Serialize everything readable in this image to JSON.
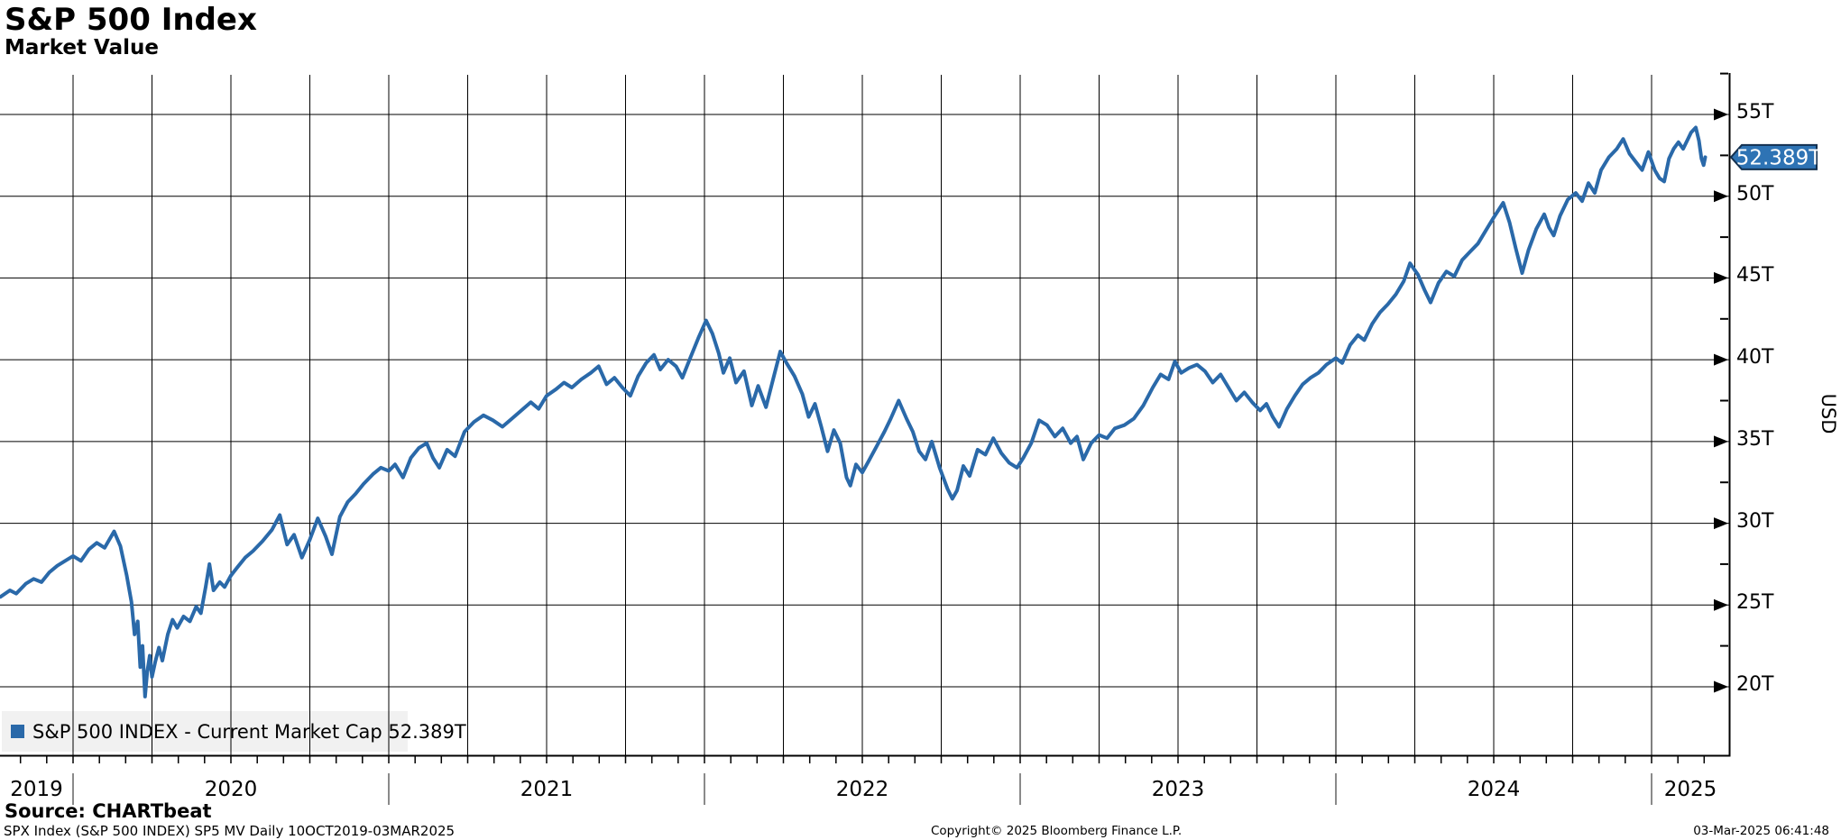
{
  "header": {
    "title": "S&P 500 Index",
    "subtitle": "Market Value"
  },
  "legend": {
    "swatch_color": "#2A69A9",
    "label": "S&P 500 INDEX - Current Market Cap 52.389T"
  },
  "y_axis": {
    "unit": "USD",
    "badge": {
      "label": "52.389T",
      "fill": "#2E73B4",
      "border": "#13304F"
    }
  },
  "footer": {
    "source": "Source: CHARTbeat",
    "meta": "SPX Index (S&P 500 INDEX) SP5 MV  Daily 10OCT2019-03MAR2025",
    "copyright": "Copyright© 2025 Bloomberg Finance L.P.",
    "timestamp": "03-Mar-2025 06:41:48"
  },
  "chart_data": {
    "type": "line",
    "title": "S&P 500 Index Market Value",
    "xlabel": "",
    "ylabel": "USD",
    "y_unit": "trillions of USD",
    "x_range_note": "10OCT2019-03MAR2025",
    "xlim": [
      2019.769,
      2025.249
    ],
    "ylim": [
      15.8,
      57.4
    ],
    "grid": "horizontal every 5T, vertical quarterly, black",
    "legend_position": "bottom-left",
    "y_ticks": [
      {
        "value": 55,
        "label": "55T"
      },
      {
        "value": 50,
        "label": "50T"
      },
      {
        "value": 45,
        "label": "45T"
      },
      {
        "value": 40,
        "label": "40T"
      },
      {
        "value": 35,
        "label": "35T"
      },
      {
        "value": 30,
        "label": "30T"
      },
      {
        "value": 25,
        "label": "25T"
      },
      {
        "value": 20,
        "label": "20T"
      }
    ],
    "y_minor_tick_values": [
      57.5,
      52.5,
      47.5,
      42.5,
      37.5,
      32.5,
      27.5,
      22.5
    ],
    "x_year_labels": [
      "2019",
      "2020",
      "2021",
      "2022",
      "2023",
      "2024",
      "2025"
    ],
    "x_year_boundaries": [
      2020,
      2021,
      2022,
      2023,
      2024,
      2025
    ],
    "series": [
      {
        "name": "S&P 500 INDEX",
        "color": "#2A69A9",
        "last_value": 52.389,
        "last_value_label": "52.389T",
        "points": [
          [
            2019.77,
            25.5
          ],
          [
            2019.8,
            25.9
          ],
          [
            2019.82,
            25.7
          ],
          [
            2019.85,
            26.3
          ],
          [
            2019.875,
            26.6
          ],
          [
            2019.9,
            26.4
          ],
          [
            2019.925,
            27.0
          ],
          [
            2019.95,
            27.4
          ],
          [
            2019.975,
            27.7
          ],
          [
            2020.0,
            28.0
          ],
          [
            2020.025,
            27.7
          ],
          [
            2020.05,
            28.4
          ],
          [
            2020.075,
            28.8
          ],
          [
            2020.1,
            28.5
          ],
          [
            2020.13,
            29.5
          ],
          [
            2020.15,
            28.6
          ],
          [
            2020.17,
            26.8
          ],
          [
            2020.185,
            25.2
          ],
          [
            2020.195,
            23.2
          ],
          [
            2020.205,
            24.0
          ],
          [
            2020.213,
            21.2
          ],
          [
            2020.22,
            22.5
          ],
          [
            2020.228,
            19.4
          ],
          [
            2020.235,
            20.9
          ],
          [
            2020.243,
            21.9
          ],
          [
            2020.25,
            20.6
          ],
          [
            2020.26,
            21.5
          ],
          [
            2020.272,
            22.4
          ],
          [
            2020.283,
            21.6
          ],
          [
            2020.3,
            23.2
          ],
          [
            2020.315,
            24.1
          ],
          [
            2020.33,
            23.6
          ],
          [
            2020.35,
            24.3
          ],
          [
            2020.37,
            24.0
          ],
          [
            2020.39,
            24.9
          ],
          [
            2020.405,
            24.5
          ],
          [
            2020.42,
            26.1
          ],
          [
            2020.432,
            27.5
          ],
          [
            2020.445,
            25.9
          ],
          [
            2020.465,
            26.4
          ],
          [
            2020.48,
            26.1
          ],
          [
            2020.5,
            26.8
          ],
          [
            2020.52,
            27.3
          ],
          [
            2020.545,
            27.9
          ],
          [
            2020.57,
            28.3
          ],
          [
            2020.6,
            28.9
          ],
          [
            2020.63,
            29.6
          ],
          [
            2020.655,
            30.5
          ],
          [
            2020.678,
            28.7
          ],
          [
            2020.7,
            29.3
          ],
          [
            2020.725,
            27.9
          ],
          [
            2020.75,
            29.0
          ],
          [
            2020.775,
            30.3
          ],
          [
            2020.8,
            29.2
          ],
          [
            2020.82,
            28.1
          ],
          [
            2020.845,
            30.4
          ],
          [
            2020.87,
            31.3
          ],
          [
            2020.895,
            31.8
          ],
          [
            2020.92,
            32.4
          ],
          [
            2020.95,
            33.0
          ],
          [
            2020.975,
            33.4
          ],
          [
            2021.0,
            33.2
          ],
          [
            2021.02,
            33.6
          ],
          [
            2021.045,
            32.8
          ],
          [
            2021.07,
            34.0
          ],
          [
            2021.095,
            34.6
          ],
          [
            2021.12,
            34.9
          ],
          [
            2021.14,
            34.0
          ],
          [
            2021.16,
            33.4
          ],
          [
            2021.185,
            34.5
          ],
          [
            2021.21,
            34.1
          ],
          [
            2021.24,
            35.6
          ],
          [
            2021.27,
            36.2
          ],
          [
            2021.3,
            36.6
          ],
          [
            2021.33,
            36.3
          ],
          [
            2021.36,
            35.9
          ],
          [
            2021.39,
            36.4
          ],
          [
            2021.42,
            36.9
          ],
          [
            2021.45,
            37.4
          ],
          [
            2021.475,
            37.0
          ],
          [
            2021.5,
            37.8
          ],
          [
            2021.53,
            38.2
          ],
          [
            2021.555,
            38.6
          ],
          [
            2021.58,
            38.3
          ],
          [
            2021.61,
            38.8
          ],
          [
            2021.64,
            39.2
          ],
          [
            2021.665,
            39.6
          ],
          [
            2021.69,
            38.5
          ],
          [
            2021.715,
            38.9
          ],
          [
            2021.74,
            38.3
          ],
          [
            2021.765,
            37.8
          ],
          [
            2021.79,
            39.0
          ],
          [
            2021.815,
            39.8
          ],
          [
            2021.84,
            40.3
          ],
          [
            2021.86,
            39.4
          ],
          [
            2021.885,
            40.0
          ],
          [
            2021.91,
            39.6
          ],
          [
            2021.93,
            38.9
          ],
          [
            2021.955,
            40.1
          ],
          [
            2021.98,
            41.3
          ],
          [
            2022.005,
            42.4
          ],
          [
            2022.025,
            41.6
          ],
          [
            2022.045,
            40.4
          ],
          [
            2022.06,
            39.2
          ],
          [
            2022.08,
            40.1
          ],
          [
            2022.1,
            38.6
          ],
          [
            2022.125,
            39.3
          ],
          [
            2022.15,
            37.2
          ],
          [
            2022.17,
            38.4
          ],
          [
            2022.195,
            37.1
          ],
          [
            2022.22,
            39.0
          ],
          [
            2022.24,
            40.5
          ],
          [
            2022.26,
            39.8
          ],
          [
            2022.285,
            39.0
          ],
          [
            2022.31,
            37.9
          ],
          [
            2022.33,
            36.5
          ],
          [
            2022.35,
            37.3
          ],
          [
            2022.37,
            35.9
          ],
          [
            2022.39,
            34.4
          ],
          [
            2022.41,
            35.7
          ],
          [
            2022.43,
            34.9
          ],
          [
            2022.45,
            32.8
          ],
          [
            2022.462,
            32.3
          ],
          [
            2022.48,
            33.6
          ],
          [
            2022.5,
            33.1
          ],
          [
            2022.52,
            33.8
          ],
          [
            2022.545,
            34.7
          ],
          [
            2022.57,
            35.6
          ],
          [
            2022.59,
            36.4
          ],
          [
            2022.615,
            37.5
          ],
          [
            2022.64,
            36.4
          ],
          [
            2022.66,
            35.6
          ],
          [
            2022.68,
            34.4
          ],
          [
            2022.7,
            33.9
          ],
          [
            2022.72,
            35.0
          ],
          [
            2022.745,
            33.4
          ],
          [
            2022.77,
            32.1
          ],
          [
            2022.785,
            31.5
          ],
          [
            2022.8,
            32.0
          ],
          [
            2022.82,
            33.5
          ],
          [
            2022.84,
            32.9
          ],
          [
            2022.865,
            34.5
          ],
          [
            2022.89,
            34.2
          ],
          [
            2022.915,
            35.2
          ],
          [
            2022.94,
            34.3
          ],
          [
            2022.965,
            33.7
          ],
          [
            2022.99,
            33.4
          ],
          [
            2023.01,
            34.0
          ],
          [
            2023.035,
            34.9
          ],
          [
            2023.06,
            36.3
          ],
          [
            2023.085,
            36.0
          ],
          [
            2023.11,
            35.3
          ],
          [
            2023.135,
            35.8
          ],
          [
            2023.16,
            34.9
          ],
          [
            2023.18,
            35.3
          ],
          [
            2023.2,
            33.9
          ],
          [
            2023.225,
            34.9
          ],
          [
            2023.25,
            35.4
          ],
          [
            2023.275,
            35.2
          ],
          [
            2023.3,
            35.8
          ],
          [
            2023.33,
            36.0
          ],
          [
            2023.36,
            36.4
          ],
          [
            2023.39,
            37.2
          ],
          [
            2023.42,
            38.3
          ],
          [
            2023.445,
            39.1
          ],
          [
            2023.47,
            38.8
          ],
          [
            2023.49,
            39.9
          ],
          [
            2023.51,
            39.2
          ],
          [
            2023.535,
            39.5
          ],
          [
            2023.56,
            39.7
          ],
          [
            2023.585,
            39.3
          ],
          [
            2023.61,
            38.6
          ],
          [
            2023.635,
            39.1
          ],
          [
            2023.66,
            38.3
          ],
          [
            2023.685,
            37.5
          ],
          [
            2023.71,
            38.0
          ],
          [
            2023.735,
            37.4
          ],
          [
            2023.76,
            36.9
          ],
          [
            2023.78,
            37.3
          ],
          [
            2023.8,
            36.5
          ],
          [
            2023.82,
            35.9
          ],
          [
            2023.845,
            37.0
          ],
          [
            2023.87,
            37.8
          ],
          [
            2023.895,
            38.5
          ],
          [
            2023.92,
            38.9
          ],
          [
            2023.945,
            39.2
          ],
          [
            2023.97,
            39.7
          ],
          [
            2024.0,
            40.1
          ],
          [
            2024.02,
            39.8
          ],
          [
            2024.045,
            40.9
          ],
          [
            2024.07,
            41.5
          ],
          [
            2024.09,
            41.2
          ],
          [
            2024.115,
            42.2
          ],
          [
            2024.14,
            42.9
          ],
          [
            2024.165,
            43.4
          ],
          [
            2024.19,
            44.0
          ],
          [
            2024.215,
            44.8
          ],
          [
            2024.235,
            45.9
          ],
          [
            2024.26,
            45.2
          ],
          [
            2024.28,
            44.3
          ],
          [
            2024.3,
            43.5
          ],
          [
            2024.325,
            44.7
          ],
          [
            2024.35,
            45.4
          ],
          [
            2024.375,
            45.1
          ],
          [
            2024.4,
            46.1
          ],
          [
            2024.425,
            46.6
          ],
          [
            2024.45,
            47.1
          ],
          [
            2024.475,
            47.9
          ],
          [
            2024.5,
            48.7
          ],
          [
            2024.53,
            49.6
          ],
          [
            2024.55,
            48.4
          ],
          [
            2024.57,
            46.8
          ],
          [
            2024.59,
            45.3
          ],
          [
            2024.61,
            46.7
          ],
          [
            2024.635,
            48.0
          ],
          [
            2024.66,
            48.9
          ],
          [
            2024.675,
            48.1
          ],
          [
            2024.69,
            47.6
          ],
          [
            2024.71,
            48.8
          ],
          [
            2024.735,
            49.8
          ],
          [
            2024.76,
            50.2
          ],
          [
            2024.78,
            49.7
          ],
          [
            2024.8,
            50.8
          ],
          [
            2024.82,
            50.2
          ],
          [
            2024.84,
            51.6
          ],
          [
            2024.865,
            52.4
          ],
          [
            2024.89,
            52.9
          ],
          [
            2024.91,
            53.5
          ],
          [
            2024.93,
            52.6
          ],
          [
            2024.95,
            52.1
          ],
          [
            2024.97,
            51.6
          ],
          [
            2024.99,
            52.7
          ],
          [
            2025.01,
            51.6
          ],
          [
            2025.025,
            51.1
          ],
          [
            2025.04,
            50.9
          ],
          [
            2025.055,
            52.3
          ],
          [
            2025.07,
            52.9
          ],
          [
            2025.085,
            53.3
          ],
          [
            2025.1,
            52.9
          ],
          [
            2025.115,
            53.5
          ],
          [
            2025.125,
            53.9
          ],
          [
            2025.14,
            54.2
          ],
          [
            2025.15,
            53.4
          ],
          [
            2025.158,
            52.3
          ],
          [
            2025.165,
            51.9
          ],
          [
            2025.17,
            52.389
          ]
        ]
      }
    ]
  }
}
